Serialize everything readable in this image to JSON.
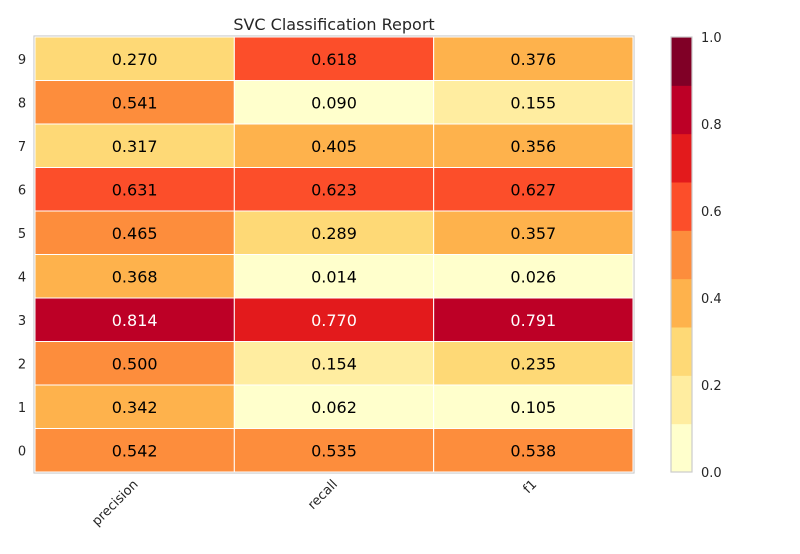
{
  "chart_data": {
    "type": "heatmap",
    "title": "SVC Classification Report",
    "xlabel": "",
    "ylabel": "",
    "columns": [
      "precision",
      "recall",
      "f1"
    ],
    "rows": [
      "9",
      "8",
      "7",
      "6",
      "5",
      "4",
      "3",
      "2",
      "1",
      "0"
    ],
    "values": [
      [
        0.27,
        0.618,
        0.376
      ],
      [
        0.541,
        0.09,
        0.155
      ],
      [
        0.317,
        0.405,
        0.356
      ],
      [
        0.631,
        0.623,
        0.627
      ],
      [
        0.465,
        0.289,
        0.357
      ],
      [
        0.368,
        0.014,
        0.026
      ],
      [
        0.814,
        0.77,
        0.791
      ],
      [
        0.5,
        0.154,
        0.235
      ],
      [
        0.342,
        0.062,
        0.105
      ],
      [
        0.542,
        0.535,
        0.538
      ]
    ],
    "colorbar": {
      "range": [
        0.0,
        1.0
      ],
      "ticks": [
        "0.0",
        "0.2",
        "0.4",
        "0.6",
        "0.8",
        "1.0"
      ],
      "colors": [
        "#ffffcc",
        "#ffeda0",
        "#fed976",
        "#feb24c",
        "#fd8d3c",
        "#fc4e2a",
        "#e31a1c",
        "#bd0026",
        "#800026"
      ]
    }
  }
}
